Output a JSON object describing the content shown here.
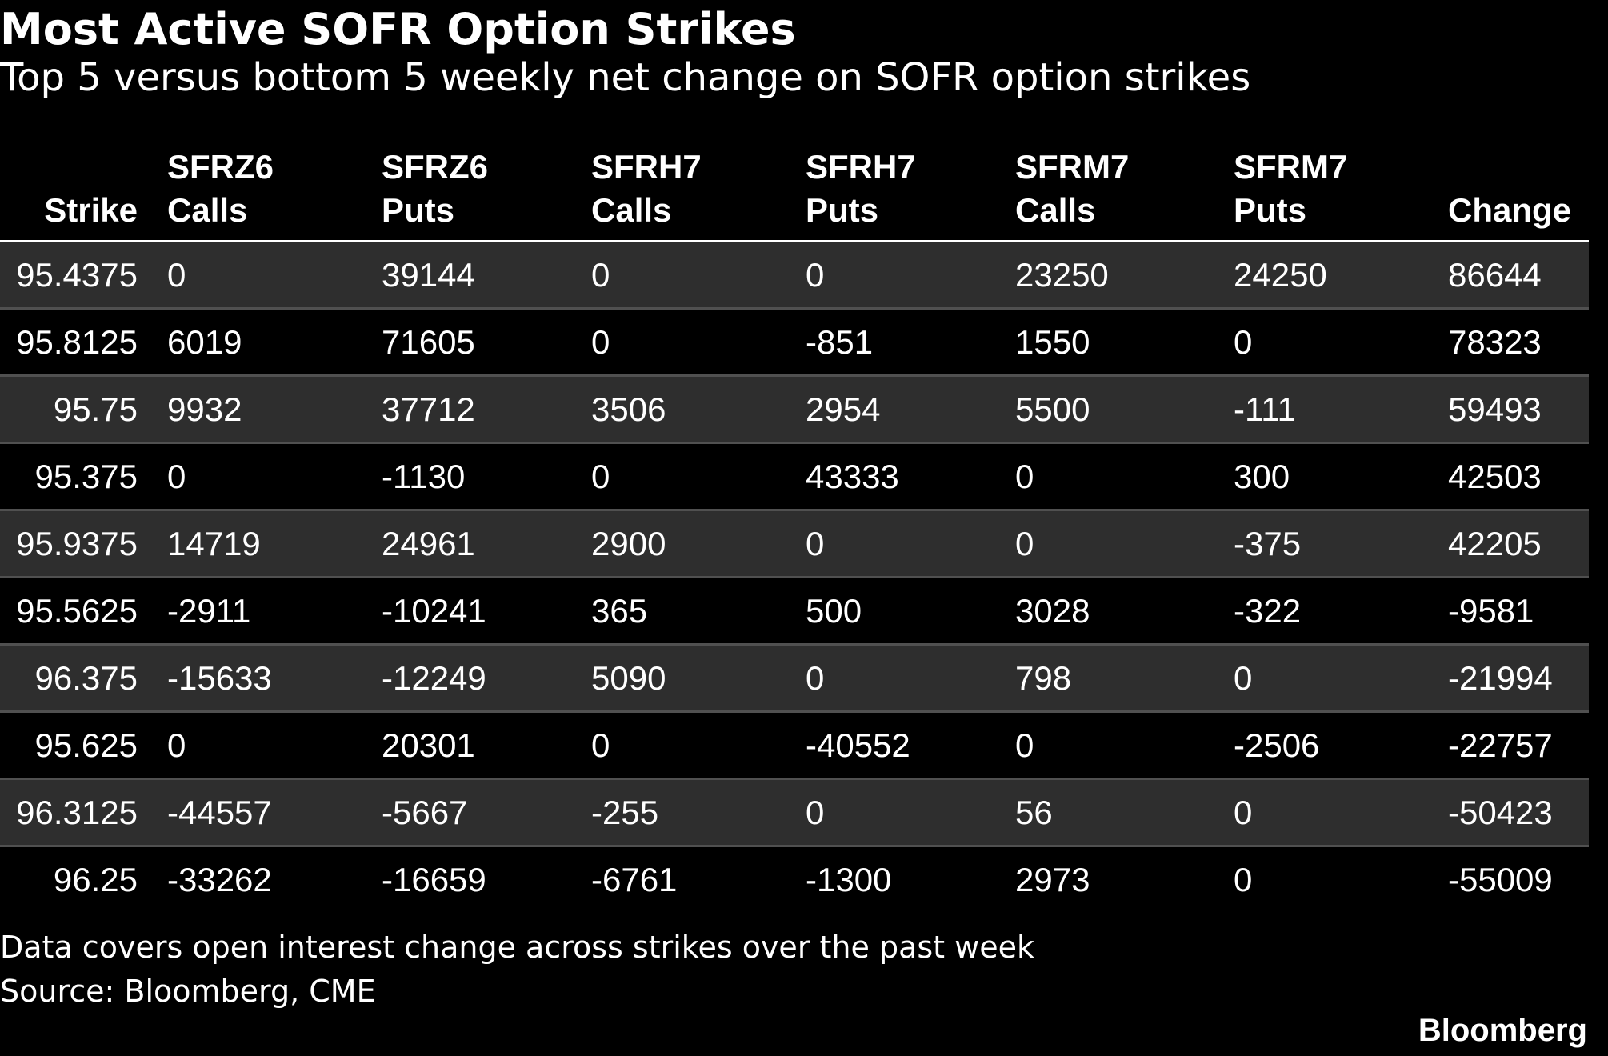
{
  "title": "Most Active SOFR Option Strikes",
  "subtitle": "Top 5 versus bottom 5 weekly net change on SOFR option strikes",
  "note": "Data covers open interest change across strikes over the past week",
  "source": "Source: Bloomberg, CME",
  "brand": "Bloomberg",
  "colors": {
    "background": "#000000",
    "text": "#ffffff",
    "row_alt": "#2e2e2e",
    "row_divider": "#505050"
  },
  "chart_data": {
    "type": "table",
    "title": "Most Active SOFR Option Strikes",
    "subtitle": "Top 5 versus bottom 5 weekly net change on SOFR option strikes",
    "columns": [
      {
        "line1": "",
        "line2": "Strike"
      },
      {
        "line1": "SFRZ6",
        "line2": "Calls"
      },
      {
        "line1": "SFRZ6",
        "line2": "Puts"
      },
      {
        "line1": "SFRH7",
        "line2": "Calls"
      },
      {
        "line1": "SFRH7",
        "line2": "Puts"
      },
      {
        "line1": "SFRM7",
        "line2": "Calls"
      },
      {
        "line1": "SFRM7",
        "line2": "Puts"
      },
      {
        "line1": "",
        "line2": "Change"
      }
    ],
    "rows": [
      [
        "95.4375",
        "0",
        "39144",
        "0",
        "0",
        "23250",
        "24250",
        "86644"
      ],
      [
        "95.8125",
        "6019",
        "71605",
        "0",
        "-851",
        "1550",
        "0",
        "78323"
      ],
      [
        "95.75",
        "9932",
        "37712",
        "3506",
        "2954",
        "5500",
        "-111",
        "59493"
      ],
      [
        "95.375",
        "0",
        "-1130",
        "0",
        "43333",
        "0",
        "300",
        "42503"
      ],
      [
        "95.9375",
        "14719",
        "24961",
        "2900",
        "0",
        "0",
        "-375",
        "42205"
      ],
      [
        "95.5625",
        "-2911",
        "-10241",
        "365",
        "500",
        "3028",
        "-322",
        "-9581"
      ],
      [
        "96.375",
        "-15633",
        "-12249",
        "5090",
        "0",
        "798",
        "0",
        "-21994"
      ],
      [
        "95.625",
        "0",
        "20301",
        "0",
        "-40552",
        "0",
        "-2506",
        "-22757"
      ],
      [
        "96.3125",
        "-44557",
        "-5667",
        "-255",
        "0",
        "56",
        "0",
        "-50423"
      ],
      [
        "96.25",
        "-33262",
        "-16659",
        "-6761",
        "-1300",
        "2973",
        "0",
        "-55009"
      ]
    ]
  }
}
